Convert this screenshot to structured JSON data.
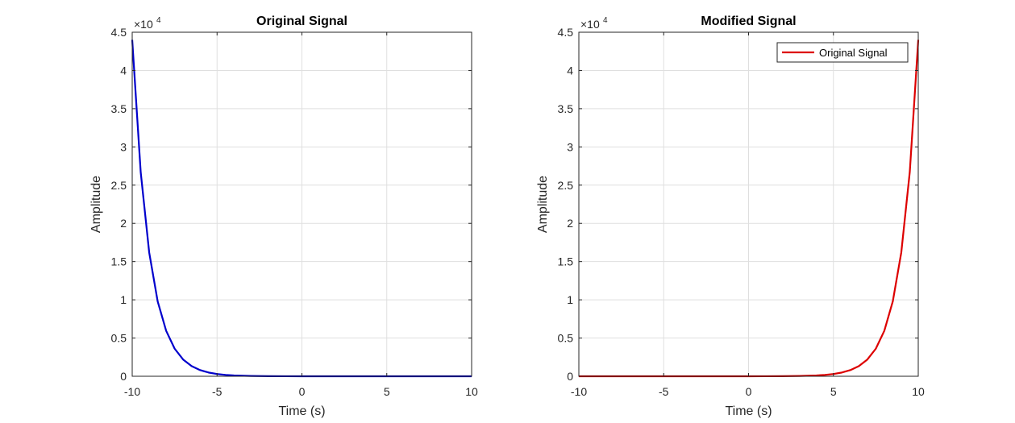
{
  "chart_data": [
    {
      "type": "line",
      "title": "Original Signal",
      "xlabel": "Time (s)",
      "ylabel": "Amplitude",
      "xlim": [
        -10,
        10
      ],
      "ylim": [
        0,
        45000
      ],
      "xticks": [
        -10,
        -5,
        0,
        5,
        10
      ],
      "xtick_labels": [
        "-10",
        "-5",
        "0",
        "5",
        "10"
      ],
      "yticks": [
        0,
        5000,
        10000,
        15000,
        20000,
        25000,
        30000,
        35000,
        40000,
        45000
      ],
      "ytick_labels": [
        "0",
        "0.5",
        "1",
        "1.5",
        "2",
        "2.5",
        "3",
        "3.5",
        "4",
        "4.5"
      ],
      "exponent_label": "×10",
      "exponent_power": "4",
      "grid": true,
      "legend": null,
      "series": [
        {
          "color": "#0000cc",
          "x": [
            -10,
            -9.5,
            -9,
            -8.5,
            -8,
            -7.5,
            -7,
            -6.5,
            -6,
            -5.5,
            -5,
            -4.5,
            -4,
            -3,
            -2,
            -1,
            0,
            2,
            4,
            6,
            8,
            10
          ],
          "y": [
            44000,
            26700,
            16200,
            9800,
            5950,
            3610,
            2190,
            1330,
            806,
            489,
            296,
            180,
            109,
            40,
            15,
            5,
            2,
            0,
            0,
            0,
            0,
            0
          ]
        }
      ]
    },
    {
      "type": "line",
      "title": "Modified Signal",
      "xlabel": "Time (s)",
      "ylabel": "Amplitude",
      "xlim": [
        -10,
        10
      ],
      "ylim": [
        0,
        45000
      ],
      "xticks": [
        -10,
        -5,
        0,
        5,
        10
      ],
      "xtick_labels": [
        "-10",
        "-5",
        "0",
        "5",
        "10"
      ],
      "yticks": [
        0,
        5000,
        10000,
        15000,
        20000,
        25000,
        30000,
        35000,
        40000,
        45000
      ],
      "ytick_labels": [
        "0",
        "0.5",
        "1",
        "1.5",
        "2",
        "2.5",
        "3",
        "3.5",
        "4",
        "4.5"
      ],
      "exponent_label": "×10",
      "exponent_power": "4",
      "grid": true,
      "legend": "top-right",
      "series": [
        {
          "name": "Original Signal",
          "color": "#dd0000",
          "x": [
            -10,
            -8,
            -6,
            -4,
            -2,
            0,
            1,
            2,
            3,
            4,
            4.5,
            5,
            5.5,
            6,
            6.5,
            7,
            7.5,
            8,
            8.5,
            9,
            9.5,
            10
          ],
          "y": [
            0,
            0,
            0,
            0,
            0,
            2,
            5,
            15,
            40,
            109,
            180,
            296,
            489,
            806,
            1330,
            2190,
            3610,
            5950,
            9800,
            16200,
            26700,
            44000
          ]
        }
      ]
    }
  ]
}
